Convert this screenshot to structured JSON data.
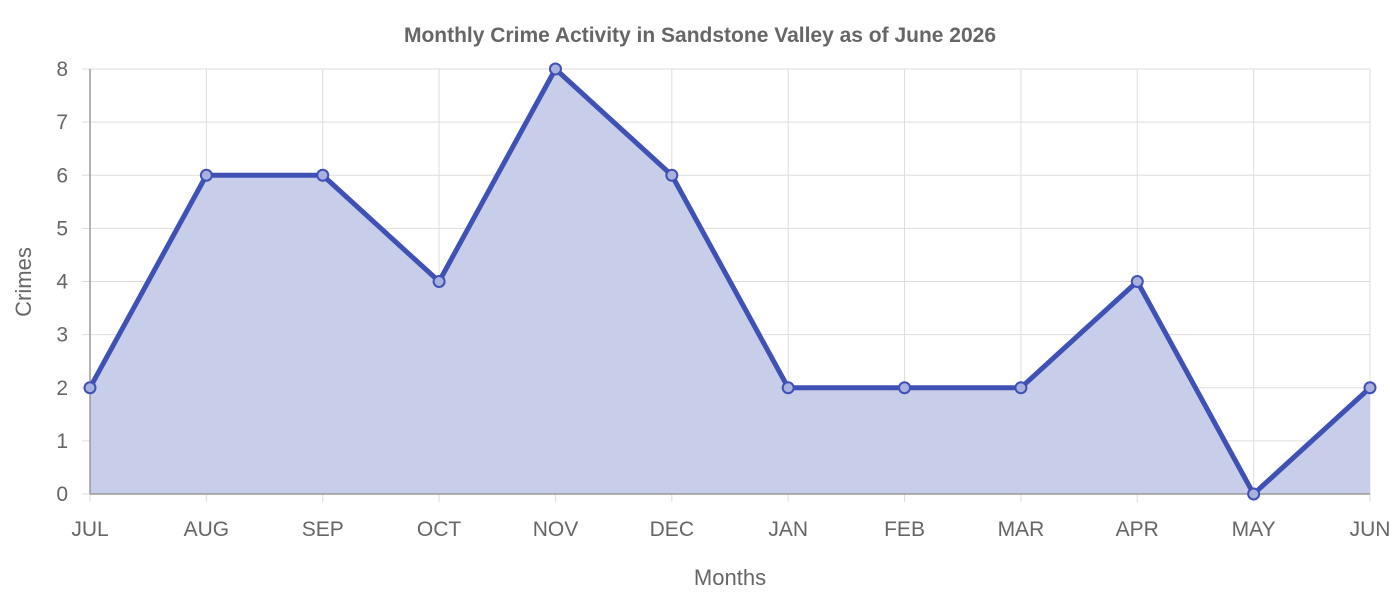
{
  "chart_data": {
    "type": "area",
    "title": "Monthly Crime Activity in Sandstone Valley as of June 2026",
    "xlabel": "Months",
    "ylabel": "Crimes",
    "categories": [
      "JUL",
      "AUG",
      "SEP",
      "OCT",
      "NOV",
      "DEC",
      "JAN",
      "FEB",
      "MAR",
      "APR",
      "MAY",
      "JUN"
    ],
    "series": [
      {
        "values": [
          2,
          6,
          6,
          4,
          8,
          6,
          2,
          2,
          2,
          4,
          0,
          2
        ]
      }
    ],
    "ylim": [
      0,
      8
    ],
    "yticks": [
      0,
      1,
      2,
      3,
      4,
      5,
      6,
      7,
      8
    ],
    "grid": true,
    "colors": {
      "line": "#3f51b5",
      "fill": "#c5cbe9",
      "text": "#666666",
      "grid": "#dddddd"
    }
  }
}
